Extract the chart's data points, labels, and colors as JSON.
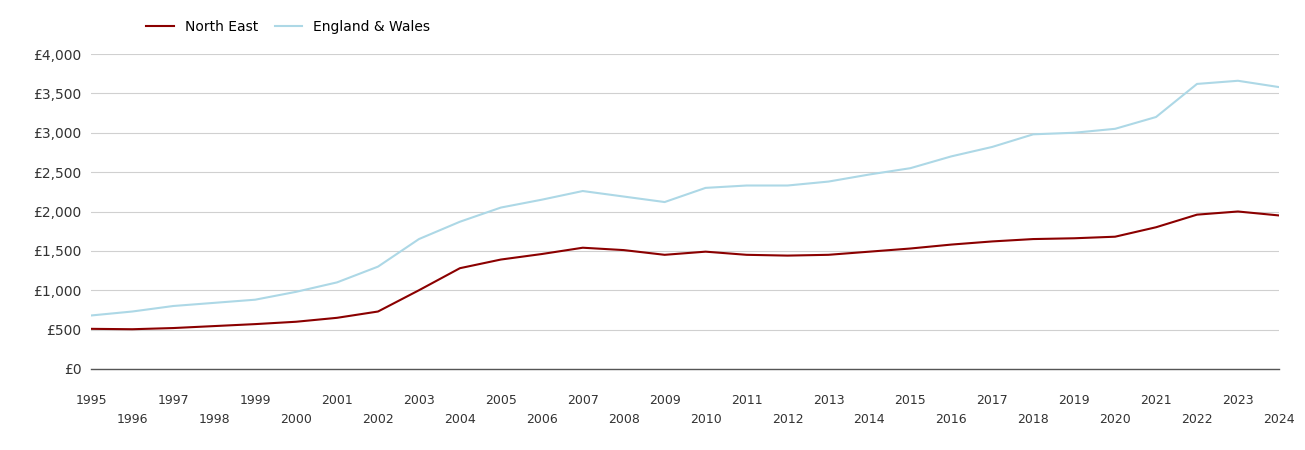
{
  "years": [
    1995,
    1996,
    1997,
    1998,
    1999,
    2000,
    2001,
    2002,
    2003,
    2004,
    2005,
    2006,
    2007,
    2008,
    2009,
    2010,
    2011,
    2012,
    2013,
    2014,
    2015,
    2016,
    2017,
    2018,
    2019,
    2020,
    2021,
    2022,
    2023,
    2024
  ],
  "north_east": [
    510,
    505,
    520,
    545,
    570,
    600,
    650,
    730,
    1000,
    1280,
    1390,
    1460,
    1540,
    1510,
    1450,
    1490,
    1450,
    1440,
    1450,
    1490,
    1530,
    1580,
    1620,
    1650,
    1660,
    1680,
    1800,
    1960,
    2000,
    1950
  ],
  "england_wales": [
    680,
    730,
    800,
    840,
    880,
    980,
    1100,
    1300,
    1650,
    1870,
    2050,
    2150,
    2260,
    2190,
    2120,
    2300,
    2330,
    2330,
    2380,
    2470,
    2550,
    2700,
    2820,
    2980,
    3000,
    3050,
    3200,
    3620,
    3660,
    3580
  ],
  "north_east_color": "#8b0000",
  "england_wales_color": "#add8e6",
  "background_color": "#ffffff",
  "grid_color": "#d0d0d0",
  "ylim": [
    0,
    4000
  ],
  "yticks": [
    0,
    500,
    1000,
    1500,
    2000,
    2500,
    3000,
    3500,
    4000
  ],
  "ytick_labels": [
    "£0",
    "£500",
    "£1,000",
    "£1,500",
    "£2,000",
    "£2,500",
    "£3,000",
    "£3,500",
    "£4,000"
  ],
  "legend_north_east": "North East",
  "legend_england_wales": "England & Wales",
  "line_width": 1.5,
  "fig_width": 13.05,
  "fig_height": 4.5
}
